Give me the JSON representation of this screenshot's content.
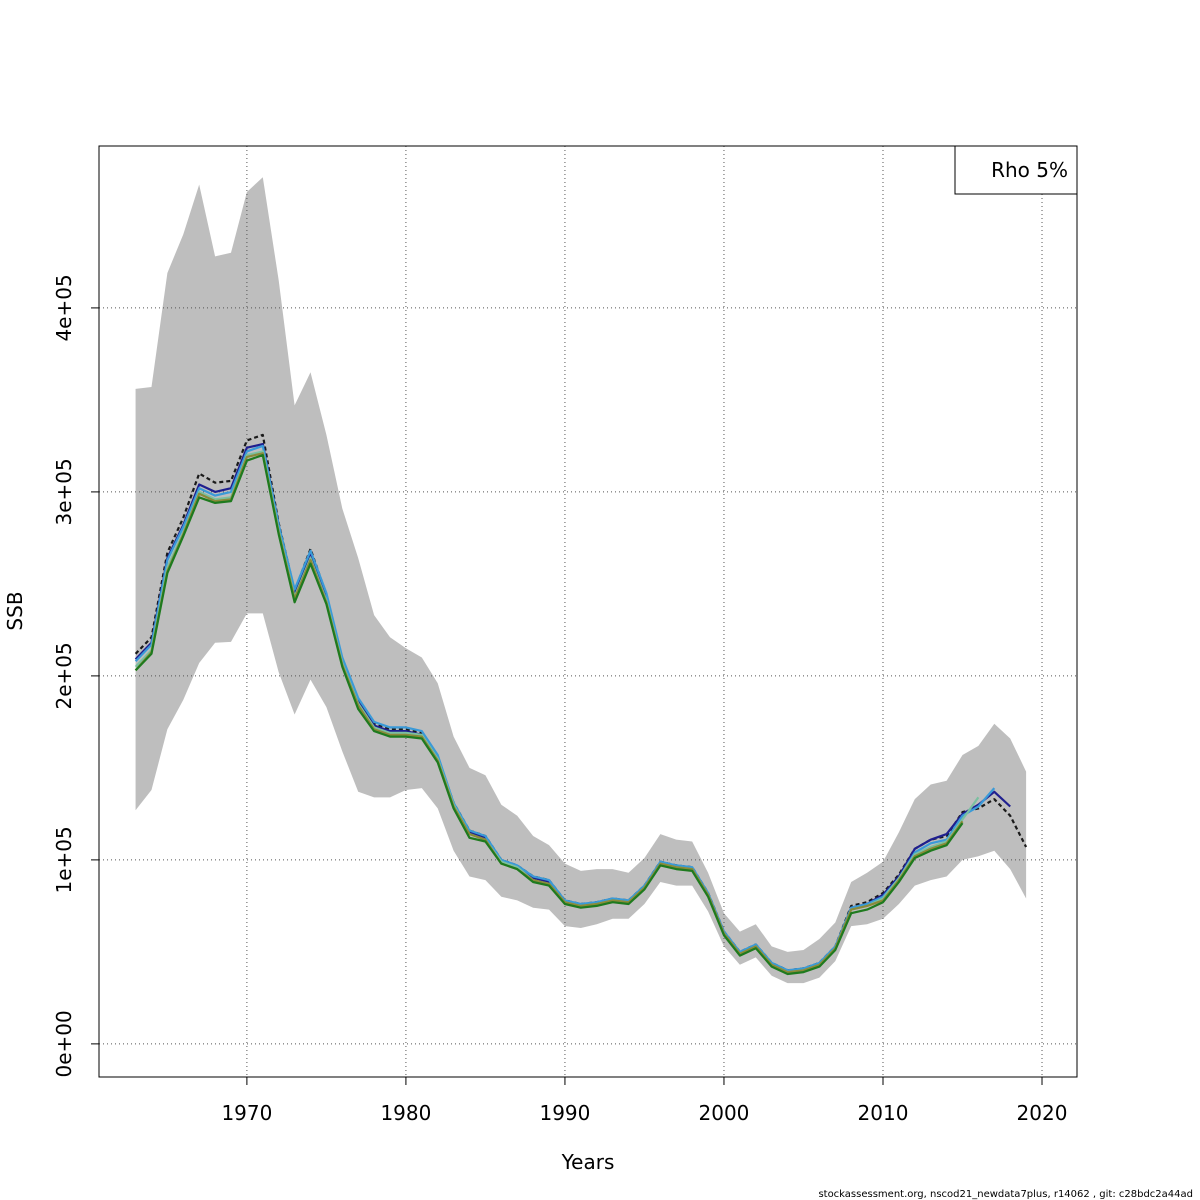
{
  "chart_data": {
    "type": "line",
    "title": "",
    "xlabel": "Years",
    "ylabel": "SSB",
    "xlim": [
      1960.7,
      2022.2
    ],
    "ylim": [
      -18000,
      488000
    ],
    "x_ticks": [
      1970,
      1980,
      1990,
      2000,
      2010,
      2020
    ],
    "x_tick_labels": [
      "1970",
      "1980",
      "1990",
      "2000",
      "2010",
      "2020"
    ],
    "y_ticks": [
      0,
      100000,
      200000,
      300000,
      400000
    ],
    "y_tick_labels": [
      "0e+00",
      "1e+05",
      "2e+05",
      "3e+05",
      "4e+05"
    ],
    "grid": true,
    "legend": {
      "position": "top-right",
      "text": "Rho 5%"
    },
    "confidence_band": {
      "color": "#bebebe",
      "x": [
        1963,
        1964,
        1965,
        1966,
        1967,
        1968,
        1969,
        1970,
        1971,
        1972,
        1973,
        1974,
        1975,
        1976,
        1977,
        1978,
        1979,
        1980,
        1981,
        1982,
        1983,
        1984,
        1985,
        1986,
        1987,
        1988,
        1989,
        1990,
        1991,
        1992,
        1993,
        1994,
        1995,
        1996,
        1997,
        1998,
        1999,
        2000,
        2001,
        2002,
        2003,
        2004,
        2005,
        2006,
        2007,
        2008,
        2009,
        2010,
        2011,
        2012,
        2013,
        2014,
        2015,
        2016,
        2017,
        2018,
        2019
      ],
      "lower": [
        127000,
        138000,
        171000,
        187000,
        207000,
        218000,
        218500,
        234000,
        234000,
        202000,
        179000,
        198000,
        183000,
        159000,
        137000,
        134000,
        134000,
        138000,
        139000,
        128000,
        105000,
        91000,
        89000,
        80000,
        78000,
        74000,
        73000,
        64000,
        63000,
        65000,
        68000,
        68000,
        76000,
        88000,
        86000,
        86000,
        72000,
        53000,
        43000,
        47000,
        37000,
        33000,
        33000,
        36000,
        45000,
        64000,
        65000,
        68000,
        76000,
        86000,
        89000,
        91000,
        100000,
        102000,
        105000,
        95000,
        79000
      ],
      "upper": [
        356000,
        357000,
        419000,
        440000,
        467000,
        428000,
        430000,
        463000,
        471000,
        415000,
        347000,
        365000,
        331000,
        291000,
        264000,
        233000,
        221000,
        215000,
        210000,
        196000,
        167000,
        150000,
        146000,
        130000,
        124000,
        113000,
        108000,
        98000,
        94000,
        95000,
        95000,
        93000,
        101000,
        114000,
        111000,
        110000,
        93000,
        71000,
        61000,
        65000,
        53000,
        50000,
        51000,
        57000,
        66000,
        88000,
        93000,
        99000,
        115000,
        133000,
        141000,
        143000,
        157000,
        162000,
        174000,
        166000,
        148000
      ]
    },
    "series": [
      {
        "color": "#1a1a1a",
        "dashed": true,
        "x": [
          1963,
          1964,
          1965,
          1966,
          1967,
          1968,
          1969,
          1970,
          1971,
          1972,
          1973,
          1974,
          1975,
          1976,
          1977,
          1978,
          1979,
          1980,
          1981,
          1982,
          1983,
          1984,
          1985,
          1986,
          1987,
          1988,
          1989,
          1990,
          1991,
          1992,
          1993,
          1994,
          1995,
          1996,
          1997,
          1998,
          1999,
          2000,
          2001,
          2002,
          2003,
          2004,
          2005,
          2006,
          2007,
          2008,
          2009,
          2010,
          2011,
          2012,
          2013,
          2014,
          2015,
          2016,
          2017,
          2018,
          2019
        ],
        "values": [
          212000,
          221000,
          267000,
          286000,
          310000,
          305000,
          306000,
          328000,
          331000,
          283000,
          246000,
          269000,
          244000,
          209000,
          187000,
          174000,
          171000,
          171000,
          169000,
          156000,
          131000,
          116000,
          113000,
          100000,
          97000,
          91000,
          89000,
          78000,
          76000,
          77000,
          79000,
          78000,
          86000,
          99000,
          97000,
          96000,
          82000,
          61000,
          50000,
          54000,
          44000,
          40000,
          41000,
          44000,
          53000,
          75000,
          77000,
          82000,
          92000,
          106000,
          111000,
          113000,
          126000,
          128000,
          133000,
          124000,
          107000
        ]
      },
      {
        "color": "#1f1f8f",
        "dashed": false,
        "x": [
          1963,
          1964,
          1965,
          1966,
          1967,
          1968,
          1969,
          1970,
          1971,
          1972,
          1973,
          1974,
          1975,
          1976,
          1977,
          1978,
          1979,
          1980,
          1981,
          1982,
          1983,
          1984,
          1985,
          1986,
          1987,
          1988,
          1989,
          1990,
          1991,
          1992,
          1993,
          1994,
          1995,
          1996,
          1997,
          1998,
          1999,
          2000,
          2001,
          2002,
          2003,
          2004,
          2005,
          2006,
          2007,
          2008,
          2009,
          2010,
          2011,
          2012,
          2013,
          2014,
          2015,
          2016,
          2017,
          2018
        ],
        "values": [
          209000,
          218000,
          264000,
          282000,
          304000,
          300000,
          302000,
          324000,
          326000,
          282000,
          245000,
          267000,
          242000,
          208000,
          186000,
          173000,
          170000,
          170000,
          168000,
          155000,
          130000,
          115000,
          112000,
          99000,
          96000,
          90000,
          88000,
          77000,
          75000,
          76000,
          78000,
          77000,
          85000,
          98000,
          96000,
          95000,
          81000,
          60000,
          49000,
          53000,
          43000,
          39000,
          40000,
          43000,
          52000,
          74000,
          76000,
          81000,
          91000,
          106000,
          111000,
          114000,
          125000,
          130000,
          137000,
          129000
        ]
      },
      {
        "color": "#3a9ad8",
        "dashed": false,
        "x": [
          1963,
          1964,
          1965,
          1966,
          1967,
          1968,
          1969,
          1970,
          1971,
          1972,
          1973,
          1974,
          1975,
          1976,
          1977,
          1978,
          1979,
          1980,
          1981,
          1982,
          1983,
          1984,
          1985,
          1986,
          1987,
          1988,
          1989,
          1990,
          1991,
          1992,
          1993,
          1994,
          1995,
          1996,
          1997,
          1998,
          1999,
          2000,
          2001,
          2002,
          2003,
          2004,
          2005,
          2006,
          2007,
          2008,
          2009,
          2010,
          2011,
          2012,
          2013,
          2014,
          2015,
          2016,
          2017
        ],
        "values": [
          208000,
          217000,
          263000,
          281000,
          302000,
          298000,
          300000,
          322000,
          325000,
          282000,
          247000,
          268000,
          245000,
          210000,
          188000,
          175000,
          172000,
          172000,
          170000,
          157000,
          131000,
          116000,
          113000,
          100000,
          97000,
          91000,
          89000,
          78000,
          76000,
          77000,
          79000,
          78000,
          86000,
          99000,
          97000,
          96000,
          82000,
          61000,
          50000,
          54000,
          44000,
          40000,
          41000,
          44000,
          53000,
          74000,
          76000,
          80000,
          90000,
          104000,
          109000,
          111000,
          124000,
          129000,
          139000
        ]
      },
      {
        "color": "#7bc0a0",
        "dashed": false,
        "x": [
          1963,
          1964,
          1965,
          1966,
          1967,
          1968,
          1969,
          1970,
          1971,
          1972,
          1973,
          1974,
          1975,
          1976,
          1977,
          1978,
          1979,
          1980,
          1981,
          1982,
          1983,
          1984,
          1985,
          1986,
          1987,
          1988,
          1989,
          1990,
          1991,
          1992,
          1993,
          1994,
          1995,
          1996,
          1997,
          1998,
          1999,
          2000,
          2001,
          2002,
          2003,
          2004,
          2005,
          2006,
          2007,
          2008,
          2009,
          2010,
          2011,
          2012,
          2013,
          2014,
          2015,
          2016
        ],
        "values": [
          205000,
          214000,
          259000,
          278000,
          300000,
          296000,
          297000,
          320000,
          322000,
          279000,
          243000,
          264000,
          241000,
          207000,
          185000,
          172000,
          169000,
          169000,
          168000,
          155000,
          130000,
          114000,
          111000,
          99000,
          96000,
          89000,
          87000,
          77000,
          75000,
          76000,
          78000,
          77000,
          85000,
          98000,
          96000,
          95000,
          81000,
          60000,
          49000,
          53000,
          43000,
          39000,
          40000,
          43000,
          52000,
          73000,
          75000,
          79000,
          90000,
          103000,
          107000,
          110000,
          122000,
          134000
        ]
      },
      {
        "color": "#8a8a3a",
        "dashed": false,
        "x": [
          1963,
          1964,
          1965,
          1966,
          1967,
          1968,
          1969,
          1970,
          1971,
          1972,
          1973,
          1974,
          1975,
          1976,
          1977,
          1978,
          1979,
          1980,
          1981,
          1982,
          1983,
          1984,
          1985,
          1986,
          1987,
          1988,
          1989,
          1990,
          1991,
          1992,
          1993,
          1994,
          1995,
          1996,
          1997,
          1998,
          1999,
          2000,
          2001,
          2002,
          2003,
          2004,
          2005,
          2006,
          2007,
          2008,
          2009,
          2010,
          2011,
          2012,
          2013,
          2014,
          2015
        ],
        "values": [
          203000,
          213000,
          257000,
          277000,
          299000,
          295000,
          296000,
          319000,
          321000,
          278000,
          242000,
          263000,
          240000,
          206000,
          184000,
          171000,
          168000,
          168000,
          167000,
          154000,
          129000,
          114000,
          111000,
          98000,
          95000,
          89000,
          87000,
          77000,
          75000,
          76000,
          78000,
          77000,
          85000,
          98000,
          96000,
          95000,
          81000,
          60000,
          49000,
          53000,
          43000,
          39000,
          40000,
          43000,
          52000,
          73000,
          75000,
          78000,
          89000,
          102000,
          106000,
          109000,
          121000
        ]
      },
      {
        "color": "#1e7a1e",
        "dashed": false,
        "x": [
          1963,
          1964,
          1965,
          1966,
          1967,
          1968,
          1969,
          1970,
          1971,
          1972,
          1973,
          1974,
          1975,
          1976,
          1977,
          1978,
          1979,
          1980,
          1981,
          1982,
          1983,
          1984,
          1985,
          1986,
          1987,
          1988,
          1989,
          1990,
          1991,
          1992,
          1993,
          1994,
          1995,
          1996,
          1997,
          1998,
          1999,
          2000,
          2001,
          2002,
          2003,
          2004,
          2005,
          2006,
          2007,
          2008,
          2009,
          2010,
          2011,
          2012,
          2013,
          2014,
          2015
        ],
        "values": [
          203000,
          212000,
          256000,
          276000,
          297000,
          294000,
          295000,
          317000,
          320000,
          277000,
          240000,
          261000,
          239000,
          205000,
          182000,
          170000,
          167000,
          167000,
          166000,
          153000,
          128000,
          112000,
          110000,
          98000,
          95000,
          88000,
          86000,
          76000,
          74000,
          75000,
          77000,
          76000,
          84000,
          97000,
          95000,
          94000,
          80000,
          59000,
          48000,
          52000,
          42000,
          38000,
          39000,
          42000,
          51000,
          71000,
          73000,
          77000,
          88000,
          101000,
          105000,
          108000,
          120000
        ]
      }
    ]
  },
  "footer": "stockassessment.org, nscod21_newdata7plus, r14062 , git: c28bdc2a44ad"
}
